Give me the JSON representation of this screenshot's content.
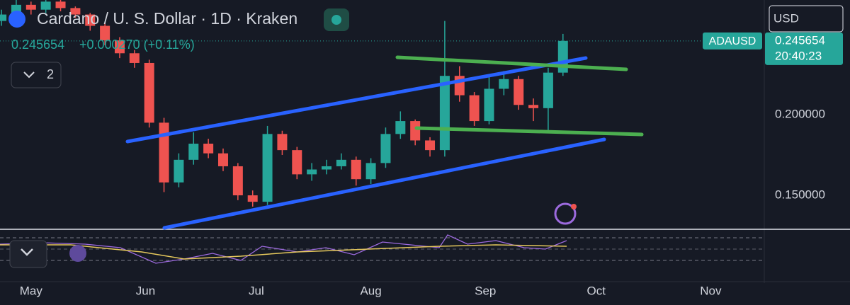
{
  "header": {
    "title": "Cardano / U. S. Dollar · 1D · Kraken",
    "change": "+0.000270 (+0.11%)",
    "layout_count": "2",
    "currency": "USD"
  },
  "chart_data": {
    "type": "candlestick",
    "symbol": "ADAUSD",
    "last_price": 0.245654,
    "countdown": "20:40:23",
    "up_color": "#26a69a",
    "down_color": "#ef5350",
    "x": [
      -8,
      -4,
      0,
      4,
      8,
      12,
      16,
      20,
      24,
      28,
      32,
      36,
      40,
      44,
      48,
      52,
      56,
      60,
      64,
      68,
      72,
      76,
      80,
      84,
      88,
      92,
      96,
      100,
      104,
      108,
      112,
      116,
      120,
      124,
      128,
      132,
      136,
      140,
      144
    ],
    "open": [
      0.258,
      0.262,
      0.268,
      0.265,
      0.27,
      0.266,
      0.262,
      0.255,
      0.246,
      0.238,
      0.232,
      0.195,
      0.158,
      0.172,
      0.182,
      0.176,
      0.168,
      0.15,
      0.146,
      0.188,
      0.178,
      0.163,
      0.166,
      0.168,
      0.172,
      0.16,
      0.17,
      0.188,
      0.196,
      0.184,
      0.178,
      0.224,
      0.212,
      0.196,
      0.216,
      0.222,
      0.206,
      0.204,
      0.226
    ],
    "close": [
      0.262,
      0.268,
      0.265,
      0.27,
      0.266,
      0.262,
      0.255,
      0.246,
      0.238,
      0.232,
      0.195,
      0.158,
      0.172,
      0.182,
      0.176,
      0.168,
      0.15,
      0.146,
      0.188,
      0.178,
      0.163,
      0.166,
      0.168,
      0.172,
      0.16,
      0.17,
      0.188,
      0.196,
      0.184,
      0.178,
      0.224,
      0.212,
      0.196,
      0.216,
      0.222,
      0.206,
      0.204,
      0.226,
      0.245654
    ],
    "high": [
      0.265,
      0.271,
      0.27,
      0.272,
      0.271,
      0.267,
      0.263,
      0.257,
      0.248,
      0.24,
      0.234,
      0.198,
      0.176,
      0.189,
      0.185,
      0.179,
      0.17,
      0.153,
      0.193,
      0.19,
      0.18,
      0.17,
      0.172,
      0.176,
      0.174,
      0.173,
      0.192,
      0.202,
      0.197,
      0.186,
      0.258,
      0.23,
      0.214,
      0.224,
      0.227,
      0.224,
      0.21,
      0.229,
      0.25
    ],
    "low": [
      0.255,
      0.259,
      0.262,
      0.263,
      0.264,
      0.26,
      0.252,
      0.243,
      0.235,
      0.229,
      0.192,
      0.152,
      0.155,
      0.169,
      0.173,
      0.165,
      0.147,
      0.143,
      0.144,
      0.175,
      0.16,
      0.159,
      0.163,
      0.166,
      0.156,
      0.157,
      0.167,
      0.185,
      0.181,
      0.174,
      0.174,
      0.208,
      0.193,
      0.194,
      0.212,
      0.203,
      0.196,
      0.189,
      0.224
    ],
    "xlim": [
      -8.4,
      198.5
    ],
    "ylim": [
      0.1294,
      0.271
    ],
    "yticks": [
      {
        "value": 0.15,
        "label": "0.150000"
      },
      {
        "value": 0.2,
        "label": "0.200000"
      }
    ],
    "xticks": [
      {
        "value": 0,
        "label": "May"
      },
      {
        "value": 31,
        "label": "Jun"
      },
      {
        "value": 61,
        "label": "Jul"
      },
      {
        "value": 92,
        "label": "Aug"
      },
      {
        "value": 123,
        "label": "Sep"
      },
      {
        "value": 153,
        "label": "Oct"
      },
      {
        "value": 184,
        "label": "Nov"
      }
    ]
  }
}
